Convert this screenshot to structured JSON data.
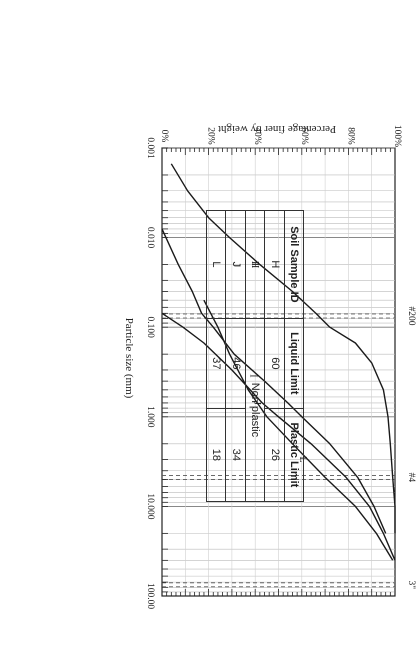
{
  "chart_data": {
    "type": "line",
    "title": "",
    "xlabel": "Particle size (mm)",
    "ylabel": "Percentage finer by weight",
    "xscale": "log",
    "xlim": [
      0.001,
      100.0
    ],
    "ylim": [
      0,
      100
    ],
    "x_ticks": [
      "0.001",
      "0.010",
      "0.100",
      "1.000",
      "10.000",
      "100.00"
    ],
    "y_ticks": [
      "0%",
      "20%",
      "40%",
      "60%",
      "80%",
      "100%"
    ],
    "sieve_labels": [
      {
        "label": "#200",
        "x": 0.075
      },
      {
        "label": "#4",
        "x": 4.75
      },
      {
        "label": "3\"",
        "x": 75
      }
    ],
    "series": [
      {
        "name": "H",
        "x": [
          0.0015,
          0.003,
          0.006,
          0.01,
          0.02,
          0.04,
          0.07,
          0.1,
          0.15,
          0.25,
          0.5,
          1.0,
          2.0,
          4.75,
          10,
          20
        ],
        "y": [
          4,
          11,
          20,
          29,
          42,
          56,
          66,
          72,
          83,
          90,
          95,
          97,
          98,
          99,
          100,
          100
        ]
      },
      {
        "name": "I",
        "x": [
          0.008,
          0.02,
          0.04,
          0.07,
          0.1,
          0.2,
          0.4,
          0.7,
          1.0,
          2.0,
          4.75,
          10,
          20
        ],
        "y": [
          0,
          7,
          13,
          17,
          22,
          31,
          44,
          54,
          60,
          72,
          84,
          91,
          96
        ]
      },
      {
        "name": "J",
        "x": [
          0.07,
          0.1,
          0.15,
          0.3,
          0.7,
          1.0,
          2.0,
          4.75,
          10,
          20,
          40
        ],
        "y": [
          0,
          9,
          18,
          30,
          43,
          50,
          64,
          79,
          89,
          95,
          100
        ]
      },
      {
        "name": "L",
        "x": [
          0.05,
          0.1,
          0.2,
          0.5,
          1.0,
          2.0,
          4.75,
          10,
          20,
          40
        ],
        "y": [
          18,
          24,
          29,
          37,
          45,
          56,
          70,
          83,
          92,
          99
        ]
      }
    ]
  },
  "table": {
    "headers": [
      "Soil Sample ID",
      "Liquid Limit",
      "Plastic Limit"
    ],
    "rows": [
      {
        "id": "H",
        "ll": "60",
        "pl": "26"
      },
      {
        "id": "I",
        "merged": "Non plastic"
      },
      {
        "id": "J",
        "ll": "46",
        "pl": "34"
      },
      {
        "id": "L",
        "ll": "37",
        "pl": "18"
      }
    ]
  }
}
